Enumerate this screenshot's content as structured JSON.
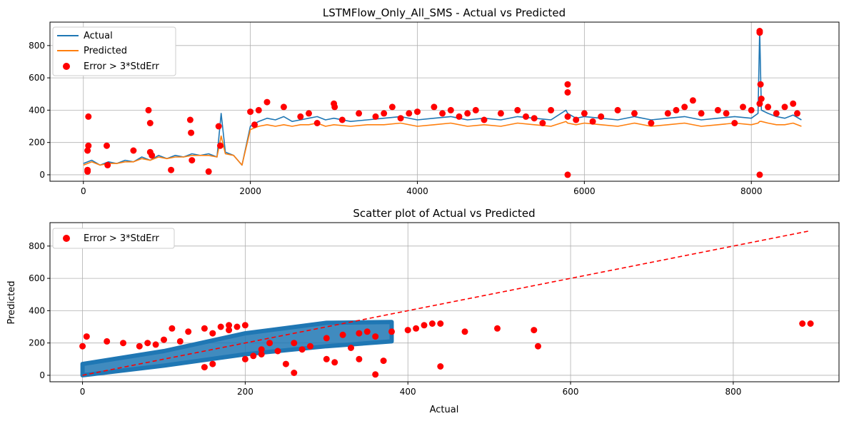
{
  "colors": {
    "actual": "#1f77b4",
    "predicted": "#ff7f0e",
    "error": "#ff0000",
    "scatter": "#1f77b4",
    "diagonal": "#ff0000",
    "grid": "#b0b0b0"
  },
  "chart_data": [
    {
      "type": "line",
      "title": "LSTMFlow_Only_All_SMS - Actual vs Predicted",
      "xlabel": "",
      "ylabel": "",
      "xlim": [
        -400,
        9050
      ],
      "ylim": [
        -40,
        945
      ],
      "xticks": [
        0,
        2000,
        4000,
        6000,
        8000
      ],
      "xtick_labels": [
        "0",
        "2000",
        "4000",
        "6000",
        "8000"
      ],
      "yticks": [
        0,
        200,
        400,
        600,
        800
      ],
      "ytick_labels": [
        "0",
        "200",
        "400",
        "600",
        "800"
      ],
      "grid": true,
      "legend_position": "upper-left",
      "legend": [
        "Actual",
        "Predicted",
        "Error > 3*StdErr"
      ],
      "series": [
        {
          "name": "Actual",
          "x": [
            0,
            100,
            200,
            300,
            400,
            500,
            600,
            700,
            800,
            900,
            1000,
            1100,
            1200,
            1300,
            1400,
            1500,
            1600,
            1650,
            1700,
            1800,
            1900,
            2000,
            2100,
            2200,
            2300,
            2400,
            2500,
            2600,
            2700,
            2800,
            2900,
            3000,
            3200,
            3400,
            3600,
            3800,
            4000,
            4200,
            4400,
            4600,
            4800,
            5000,
            5200,
            5400,
            5600,
            5780,
            5800,
            5900,
            6000,
            6200,
            6400,
            6600,
            6800,
            7000,
            7200,
            7400,
            7600,
            7800,
            8000,
            8080,
            8100,
            8120,
            8200,
            8300,
            8400,
            8500,
            8600
          ],
          "y": [
            70,
            90,
            60,
            80,
            70,
            90,
            80,
            110,
            90,
            120,
            100,
            120,
            110,
            130,
            120,
            130,
            110,
            380,
            140,
            120,
            60,
            300,
            330,
            350,
            340,
            360,
            330,
            340,
            350,
            360,
            340,
            350,
            330,
            340,
            350,
            360,
            340,
            350,
            360,
            340,
            350,
            340,
            360,
            350,
            340,
            400,
            380,
            350,
            360,
            350,
            340,
            360,
            340,
            350,
            360,
            340,
            350,
            360,
            350,
            380,
            895,
            400,
            380,
            360,
            350,
            370,
            340
          ]
        },
        {
          "name": "Predicted",
          "x": [
            0,
            100,
            200,
            300,
            400,
            500,
            600,
            700,
            800,
            900,
            1000,
            1100,
            1200,
            1300,
            1400,
            1500,
            1600,
            1650,
            1700,
            1800,
            1900,
            2000,
            2100,
            2200,
            2300,
            2400,
            2500,
            2600,
            2700,
            2800,
            2900,
            3000,
            3200,
            3400,
            3600,
            3800,
            4000,
            4200,
            4400,
            4600,
            4800,
            5000,
            5200,
            5400,
            5600,
            5780,
            5800,
            5900,
            6000,
            6200,
            6400,
            6600,
            6800,
            7000,
            7200,
            7400,
            7600,
            7800,
            8000,
            8080,
            8100,
            8120,
            8200,
            8300,
            8400,
            8500,
            8600
          ],
          "y": [
            60,
            80,
            60,
            70,
            70,
            80,
            80,
            100,
            90,
            110,
            100,
            110,
            110,
            120,
            120,
            120,
            110,
            240,
            130,
            120,
            60,
            280,
            300,
            310,
            300,
            310,
            300,
            310,
            310,
            320,
            300,
            310,
            300,
            310,
            310,
            320,
            300,
            310,
            320,
            300,
            310,
            300,
            320,
            310,
            300,
            330,
            320,
            310,
            320,
            310,
            300,
            320,
            300,
            310,
            320,
            300,
            310,
            320,
            310,
            320,
            330,
            330,
            320,
            310,
            310,
            320,
            300
          ]
        }
      ],
      "error_points": {
        "name": "Error > 3*StdErr",
        "x": [
          50,
          50,
          50,
          60,
          60,
          280,
          290,
          600,
          780,
          800,
          800,
          820,
          1050,
          1280,
          1290,
          1300,
          1500,
          1620,
          1640,
          2000,
          2050,
          2100,
          2200,
          2400,
          2600,
          2700,
          2800,
          3000,
          3010,
          3100,
          3300,
          3500,
          3600,
          3700,
          3800,
          3900,
          4000,
          4200,
          4300,
          4400,
          4500,
          4600,
          4700,
          4800,
          5000,
          5200,
          5300,
          5400,
          5500,
          5600,
          5800,
          5800,
          5800,
          5800,
          5900,
          6000,
          6100,
          6200,
          6400,
          6600,
          6800,
          7000,
          7100,
          7200,
          7300,
          7400,
          7600,
          7700,
          7800,
          7900,
          8000,
          8100,
          8100,
          8100,
          8100,
          8110,
          8120,
          8200,
          8300,
          8400,
          8500,
          8550
        ],
        "y": [
          20,
          30,
          150,
          180,
          360,
          180,
          60,
          150,
          400,
          140,
          320,
          120,
          30,
          340,
          260,
          90,
          20,
          300,
          180,
          390,
          310,
          400,
          450,
          420,
          360,
          380,
          320,
          440,
          420,
          340,
          380,
          360,
          380,
          420,
          350,
          380,
          390,
          420,
          380,
          400,
          360,
          380,
          400,
          340,
          380,
          400,
          360,
          350,
          320,
          400,
          560,
          510,
          360,
          0,
          340,
          380,
          330,
          360,
          400,
          380,
          320,
          380,
          400,
          420,
          460,
          380,
          400,
          380,
          320,
          420,
          400,
          890,
          880,
          440,
          0,
          560,
          470,
          420,
          380,
          420,
          440,
          380
        ]
      }
    },
    {
      "type": "scatter",
      "title": "Scatter plot of Actual vs Predicted",
      "xlabel": "Actual",
      "ylabel": "Predicted",
      "xlim": [
        -40,
        930
      ],
      "ylim": [
        -40,
        945
      ],
      "xticks": [
        0,
        200,
        400,
        600,
        800
      ],
      "xtick_labels": [
        "0",
        "200",
        "400",
        "600",
        "800"
      ],
      "yticks": [
        0,
        200,
        400,
        600,
        800
      ],
      "ytick_labels": [
        "0",
        "200",
        "400",
        "600",
        "800"
      ],
      "grid": true,
      "legend_position": "upper-left",
      "legend": [
        "Error > 3*StdErr"
      ],
      "band": {
        "x": [
          0,
          100,
          200,
          300,
          380,
          380,
          300,
          200,
          100,
          0
        ],
        "y": [
          70,
          150,
          260,
          325,
          330,
          210,
          180,
          130,
          60,
          0
        ]
      },
      "diagonal": {
        "x": [
          0,
          895
        ],
        "y": [
          0,
          895
        ]
      },
      "error_points": {
        "name": "Error > 3*StdErr",
        "x": [
          0,
          5,
          30,
          50,
          70,
          100,
          110,
          130,
          150,
          160,
          170,
          180,
          190,
          200,
          210,
          220,
          240,
          260,
          280,
          300,
          320,
          340,
          350,
          360,
          380,
          400,
          410,
          420,
          430,
          440,
          470,
          510,
          555,
          560,
          885,
          895,
          80,
          150,
          200,
          250,
          260,
          300,
          340,
          360,
          440,
          90,
          120,
          160,
          180,
          220,
          230,
          270,
          310,
          330,
          370
        ],
        "y": [
          180,
          240,
          210,
          200,
          180,
          220,
          290,
          270,
          290,
          260,
          300,
          310,
          300,
          310,
          120,
          160,
          150,
          200,
          180,
          230,
          250,
          260,
          270,
          240,
          270,
          280,
          290,
          310,
          320,
          320,
          270,
          290,
          280,
          180,
          320,
          320,
          200,
          50,
          100,
          70,
          15,
          100,
          100,
          5,
          55,
          190,
          210,
          70,
          280,
          130,
          200,
          160,
          80,
          170,
          90
        ]
      }
    }
  ]
}
